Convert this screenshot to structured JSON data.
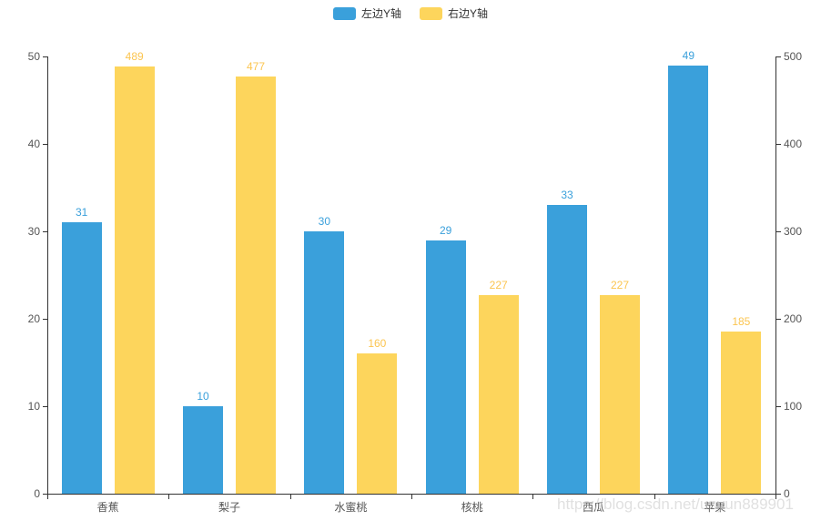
{
  "legend": {
    "items": [
      {
        "label": "左边Y轴",
        "color": "#3AA0DB"
      },
      {
        "label": "右边Y轴",
        "color": "#FDD55C"
      }
    ]
  },
  "watermark": "https://blog.csdn.net/unyun889901",
  "chart_data": {
    "type": "bar",
    "categories": [
      "香蕉",
      "梨子",
      "水蜜桃",
      "核桃",
      "西瓜",
      "苹果"
    ],
    "series": [
      {
        "name": "左边Y轴",
        "axis": "left",
        "color": "#3AA0DB",
        "label_color": "#3AA0DB",
        "values": [
          31,
          10,
          30,
          29,
          33,
          49
        ]
      },
      {
        "name": "右边Y轴",
        "axis": "right",
        "color": "#FDD55C",
        "label_color": "#FBC550",
        "values": [
          489,
          477,
          160,
          227,
          227,
          185
        ]
      }
    ],
    "left_axis": {
      "min": 0,
      "max": 50,
      "ticks": [
        "0",
        "10",
        "20",
        "30",
        "40",
        "50"
      ]
    },
    "right_axis": {
      "min": 0,
      "max": 500,
      "ticks": [
        "0",
        "100",
        "200",
        "300",
        "400",
        "500"
      ]
    },
    "grid": false,
    "legend_position": "top-center",
    "title": "",
    "xlabel": "",
    "ylabel_left": "",
    "ylabel_right": ""
  }
}
